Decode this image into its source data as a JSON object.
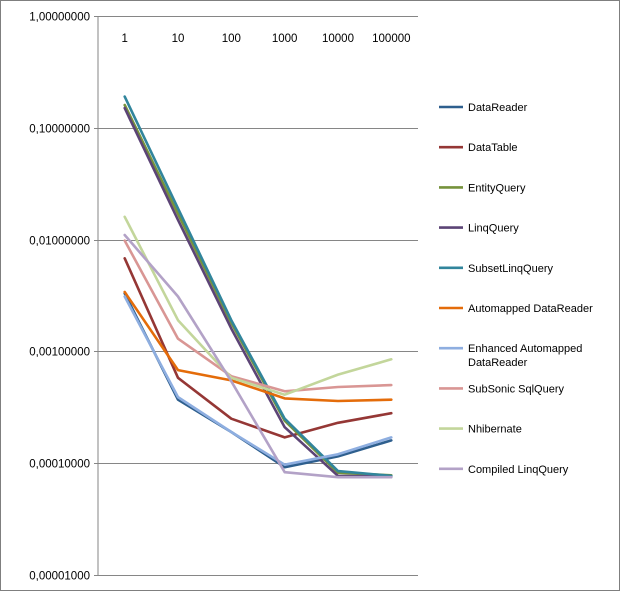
{
  "chart_data": {
    "type": "line",
    "title": "",
    "xlabel": "",
    "ylabel": "",
    "y_scale": "log",
    "ylim": [
      1e-05,
      1
    ],
    "y_tick_values": [
      1,
      0.1,
      0.01,
      0.001,
      0.0001,
      1e-05
    ],
    "y_tick_labels": [
      "1,00000000",
      "0,10000000",
      "0,01000000",
      "0,00100000",
      "0,00010000",
      "0,00001000"
    ],
    "x_axis_position": "top",
    "categories": [
      "1",
      "10",
      "100",
      "1000",
      "10000",
      "100000"
    ],
    "grid": "horizontal",
    "legend_position": "right",
    "series": [
      {
        "name": "DataReader",
        "color": "#2e5f8e",
        "values": [
          0.0033,
          0.00037,
          0.00019,
          9.2e-05,
          0.000115,
          0.00016
        ]
      },
      {
        "name": "DataTable",
        "color": "#953735",
        "values": [
          0.0068,
          0.00058,
          0.00025,
          0.00017,
          0.00023,
          0.00028
        ]
      },
      {
        "name": "EntityQuery",
        "color": "#76923c",
        "values": [
          0.16,
          0.017,
          0.0018,
          0.00024,
          8.2e-05,
          7.8e-05
        ]
      },
      {
        "name": "LinqQuery",
        "color": "#5c4476",
        "values": [
          0.15,
          0.015,
          0.0016,
          0.00021,
          7.7e-05,
          7.6e-05
        ]
      },
      {
        "name": "SubsetLinqQuery",
        "color": "#31859c",
        "values": [
          0.19,
          0.019,
          0.0019,
          0.00025,
          8.5e-05,
          7.7e-05
        ]
      },
      {
        "name": "Automapped DataReader",
        "color": "#e46c0a",
        "values": [
          0.0034,
          0.00068,
          0.00055,
          0.00038,
          0.00036,
          0.00037
        ]
      },
      {
        "name": "Enhanced Automapped\nDataReader",
        "color": "#8eaee0",
        "values": [
          0.0031,
          0.00039,
          0.00019,
          9.7e-05,
          0.00012,
          0.00017
        ]
      },
      {
        "name": "SubSonic SqlQuery",
        "color": "#d99694",
        "values": [
          0.0098,
          0.0013,
          0.0006,
          0.00044,
          0.00048,
          0.0005
        ]
      },
      {
        "name": "Nhibernate",
        "color": "#c3d69b",
        "values": [
          0.016,
          0.0019,
          0.00058,
          0.00041,
          0.00062,
          0.00085
        ]
      },
      {
        "name": "Compiled LinqQuery",
        "color": "#b3a2c7",
        "values": [
          0.011,
          0.0031,
          0.00054,
          8.3e-05,
          7.5e-05,
          7.5e-05
        ]
      }
    ]
  }
}
